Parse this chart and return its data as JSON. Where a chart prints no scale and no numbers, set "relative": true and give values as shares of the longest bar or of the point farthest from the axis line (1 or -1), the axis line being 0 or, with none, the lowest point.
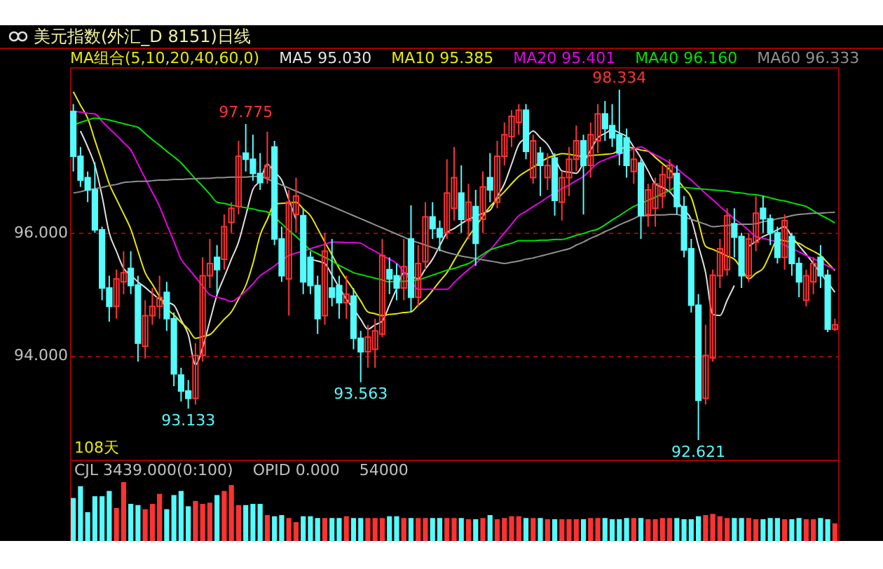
{
  "chart_data": [
    {
      "type": "candlestick",
      "title": "美元指数(外汇_D 8151)日线",
      "legend_title": "MA组合(5,10,20,40,60,0)",
      "legend": "top",
      "tick_labels": "y",
      "grid": "y",
      "categories": [
        null,
        null,
        null,
        null,
        null,
        null,
        null,
        null,
        null,
        null,
        null,
        null,
        null,
        null,
        null,
        null,
        null,
        null,
        null,
        null,
        null,
        null,
        null,
        null,
        null,
        null,
        null,
        null,
        null,
        null,
        null,
        null,
        null,
        null,
        null,
        null,
        null,
        null,
        null,
        null,
        null,
        null,
        null,
        null,
        null,
        null,
        null,
        null,
        null,
        null,
        null,
        null,
        null,
        null,
        null,
        null,
        null,
        null,
        null,
        null,
        null,
        null,
        null,
        null,
        null,
        null,
        null,
        null,
        null,
        null,
        null,
        null,
        null,
        null,
        null,
        null,
        null,
        null,
        null,
        null,
        null,
        null,
        null,
        null,
        null,
        null,
        null,
        null,
        null,
        null,
        null,
        null,
        null,
        null,
        null,
        null,
        null,
        null,
        null,
        null,
        null,
        null,
        null,
        null,
        null,
        null,
        null
      ],
      "ylim": [
        92.3,
        98.7
      ],
      "yticks": [
        {
          "value": 94,
          "label": "94.000"
        },
        {
          "value": 96,
          "label": "96.000"
        }
      ],
      "ohlc": [
        [
          97.98,
          98.1,
          97.0,
          97.25
        ],
        [
          97.25,
          97.4,
          96.75,
          96.86
        ],
        [
          96.9,
          97.0,
          96.5,
          96.7
        ],
        [
          96.7,
          97.15,
          96.0,
          96.05
        ],
        [
          96.05,
          96.1,
          94.9,
          95.1
        ],
        [
          95.1,
          95.3,
          94.55,
          94.8
        ],
        [
          94.8,
          95.4,
          94.6,
          95.25
        ],
        [
          95.2,
          95.7,
          95.0,
          95.35
        ],
        [
          95.42,
          95.7,
          95.0,
          95.14
        ],
        [
          95.15,
          95.3,
          93.9,
          94.2
        ],
        [
          94.15,
          94.9,
          93.95,
          94.65
        ],
        [
          94.65,
          95.1,
          94.5,
          94.8
        ],
        [
          94.8,
          95.3,
          94.6,
          94.95
        ],
        [
          95.03,
          95.2,
          94.4,
          94.6
        ],
        [
          94.6,
          94.7,
          93.5,
          93.7
        ],
        [
          93.68,
          93.8,
          93.25,
          93.42
        ],
        [
          93.42,
          93.6,
          93.133,
          93.3
        ],
        [
          93.3,
          94.2,
          93.2,
          94.0
        ],
        [
          94.0,
          95.6,
          93.9,
          95.3
        ],
        [
          95.3,
          95.9,
          95.1,
          95.5
        ],
        [
          95.6,
          95.8,
          95.0,
          95.4
        ],
        [
          95.57,
          96.3,
          95.4,
          96.1
        ],
        [
          96.17,
          96.5,
          96.0,
          96.4
        ],
        [
          96.43,
          97.5,
          96.3,
          97.25
        ],
        [
          97.3,
          97.775,
          97.0,
          97.2
        ],
        [
          97.2,
          97.6,
          96.85,
          96.97
        ],
        [
          96.97,
          97.3,
          96.7,
          96.82
        ],
        [
          96.9,
          97.65,
          96.8,
          97.1
        ],
        [
          97.4,
          97.5,
          95.8,
          95.9
        ],
        [
          95.9,
          96.1,
          95.2,
          95.3
        ],
        [
          95.25,
          96.7,
          94.65,
          96.5
        ],
        [
          96.3,
          96.9,
          96.0,
          96.6
        ],
        [
          96.28,
          96.4,
          95.0,
          95.2
        ],
        [
          95.6,
          95.7,
          95.0,
          95.14
        ],
        [
          95.14,
          95.3,
          94.35,
          94.6
        ],
        [
          94.65,
          96.0,
          94.5,
          95.7
        ],
        [
          95.1,
          95.9,
          94.8,
          94.95
        ],
        [
          95.14,
          95.3,
          94.6,
          94.86
        ],
        [
          94.86,
          95.3,
          94.6,
          95.0
        ],
        [
          94.97,
          95.1,
          94.1,
          94.28
        ],
        [
          94.28,
          94.4,
          93.563,
          94.06
        ],
        [
          94.06,
          94.5,
          93.8,
          94.3
        ],
        [
          94.1,
          94.6,
          93.8,
          94.4
        ],
        [
          94.35,
          95.9,
          94.3,
          95.63
        ],
        [
          95.4,
          95.6,
          95.0,
          95.25
        ],
        [
          95.3,
          95.5,
          94.9,
          95.1
        ],
        [
          95.1,
          95.9,
          94.9,
          95.45
        ],
        [
          95.9,
          96.45,
          94.7,
          94.95
        ],
        [
          94.95,
          95.8,
          94.8,
          95.5
        ],
        [
          95.53,
          96.5,
          95.4,
          96.26
        ],
        [
          96.26,
          96.5,
          95.9,
          96.07
        ],
        [
          96.07,
          96.2,
          95.7,
          95.93
        ],
        [
          96.0,
          97.2,
          95.9,
          96.65
        ],
        [
          96.4,
          97.4,
          96.2,
          96.9
        ],
        [
          96.65,
          97.1,
          96.0,
          96.22
        ],
        [
          96.2,
          96.8,
          95.9,
          96.5
        ],
        [
          96.43,
          96.7,
          95.46,
          95.83
        ],
        [
          96.22,
          97.0,
          96.0,
          96.75
        ],
        [
          96.9,
          97.3,
          96.5,
          96.7
        ],
        [
          96.5,
          97.5,
          96.4,
          97.25
        ],
        [
          97.25,
          97.8,
          97.1,
          97.6
        ],
        [
          97.57,
          98.0,
          97.4,
          97.9
        ],
        [
          97.8,
          98.1,
          97.6,
          98.0
        ],
        [
          98.0,
          98.1,
          97.2,
          97.33
        ],
        [
          96.9,
          97.6,
          96.8,
          97.5
        ],
        [
          97.3,
          97.4,
          96.6,
          97.1
        ],
        [
          96.9,
          97.3,
          96.7,
          97.1
        ],
        [
          97.22,
          97.3,
          96.28,
          96.53
        ],
        [
          96.5,
          97.0,
          96.2,
          96.9
        ],
        [
          96.9,
          97.4,
          96.6,
          97.2
        ],
        [
          97.2,
          97.75,
          97.0,
          97.5
        ],
        [
          97.5,
          97.6,
          96.3,
          97.1
        ],
        [
          97.1,
          97.8,
          96.9,
          97.6
        ],
        [
          97.5,
          98.1,
          97.3,
          97.94
        ],
        [
          97.94,
          98.15,
          97.5,
          97.7
        ],
        [
          97.75,
          98.1,
          97.4,
          97.55
        ],
        [
          97.6,
          98.334,
          97.1,
          97.3
        ],
        [
          97.55,
          97.7,
          96.9,
          97.1
        ],
        [
          97.0,
          97.4,
          96.8,
          97.2
        ],
        [
          97.14,
          97.2,
          95.9,
          96.28
        ],
        [
          96.3,
          96.8,
          96.1,
          96.7
        ],
        [
          96.4,
          96.9,
          96.1,
          96.8
        ],
        [
          96.6,
          97.1,
          96.4,
          96.95
        ],
        [
          96.9,
          97.2,
          96.7,
          97.1
        ],
        [
          96.97,
          97.1,
          96.3,
          96.43
        ],
        [
          96.43,
          96.6,
          95.6,
          95.72
        ],
        [
          95.74,
          95.9,
          94.7,
          94.82
        ],
        [
          94.82,
          95.0,
          92.621,
          93.27
        ],
        [
          93.3,
          94.5,
          93.2,
          94.0
        ],
        [
          93.96,
          95.4,
          93.9,
          95.31
        ],
        [
          95.3,
          95.9,
          95.1,
          95.74
        ],
        [
          95.4,
          96.4,
          95.3,
          96.28
        ],
        [
          96.15,
          96.4,
          95.6,
          95.93
        ],
        [
          95.94,
          96.0,
          95.1,
          95.3
        ],
        [
          95.3,
          96.0,
          95.2,
          95.9
        ],
        [
          95.85,
          96.6,
          95.7,
          96.32
        ],
        [
          96.4,
          96.6,
          96.0,
          96.23
        ],
        [
          96.23,
          96.3,
          95.8,
          96.0
        ],
        [
          96.0,
          96.1,
          95.5,
          95.6
        ],
        [
          95.6,
          96.3,
          95.4,
          96.2
        ],
        [
          95.94,
          96.0,
          95.3,
          95.5
        ],
        [
          95.5,
          95.6,
          94.95,
          95.2
        ],
        [
          94.9,
          95.4,
          94.8,
          95.3
        ],
        [
          95.2,
          95.6,
          95.0,
          95.5
        ],
        [
          95.6,
          95.8,
          95.1,
          95.3
        ],
        [
          95.31,
          95.4,
          94.38,
          94.43
        ],
        [
          94.43,
          94.6,
          94.4,
          94.5
        ]
      ],
      "colors": [
        "#54fcfc",
        "#54fcfc",
        "#54fcfc",
        "#54fcfc",
        "#54fcfc",
        "#54fcfc",
        "#ff3232",
        "#ff3232",
        "#54fcfc",
        "#54fcfc",
        "#ff3232",
        "#ff3232",
        "#ff3232",
        "#54fcfc",
        "#54fcfc",
        "#54fcfc",
        "#54fcfc",
        "#ff3232",
        "#ff3232",
        "#ff3232",
        "#54fcfc",
        "#ff3232",
        "#ff3232",
        "#ff3232",
        "#54fcfc",
        "#54fcfc",
        "#54fcfc",
        "#ff3232",
        "#54fcfc",
        "#54fcfc",
        "#ff3232",
        "#ff3232",
        "#54fcfc",
        "#54fcfc",
        "#54fcfc",
        "#ff3232",
        "#54fcfc",
        "#54fcfc",
        "#ff3232",
        "#54fcfc",
        "#54fcfc",
        "#ff3232",
        "#ff3232",
        "#ff3232",
        "#54fcfc",
        "#54fcfc",
        "#ff3232",
        "#54fcfc",
        "#ff3232",
        "#ff3232",
        "#54fcfc",
        "#54fcfc",
        "#ff3232",
        "#ff3232",
        "#54fcfc",
        "#ff3232",
        "#54fcfc",
        "#ff3232",
        "#54fcfc",
        "#ff3232",
        "#ff3232",
        "#ff3232",
        "#ff3232",
        "#54fcfc",
        "#ff3232",
        "#54fcfc",
        "#ff3232",
        "#54fcfc",
        "#ff3232",
        "#ff3232",
        "#ff3232",
        "#54fcfc",
        "#ff3232",
        "#ff3232",
        "#54fcfc",
        "#54fcfc",
        "#54fcfc",
        "#54fcfc",
        "#ff3232",
        "#54fcfc",
        "#ff3232",
        "#ff3232",
        "#ff3232",
        "#ff3232",
        "#54fcfc",
        "#54fcfc",
        "#54fcfc",
        "#54fcfc",
        "#ff3232",
        "#ff3232",
        "#ff3232",
        "#ff3232",
        "#54fcfc",
        "#54fcfc",
        "#ff3232",
        "#ff3232",
        "#54fcfc",
        "#54fcfc",
        "#54fcfc",
        "#ff3232",
        "#54fcfc",
        "#54fcfc",
        "#ff3232",
        "#ff3232",
        "#54fcfc",
        "#54fcfc",
        "#ff3232"
      ],
      "series": [
        {
          "type": "line",
          "name": "MA5 95.030",
          "color": "#e0e0e0",
          "values": [
            null,
            97.66,
            97.4,
            97.1,
            96.6,
            96.0,
            95.7,
            95.42,
            95.31,
            95.2,
            95.11,
            95.01,
            94.92,
            94.87,
            94.82,
            94.58,
            94.34,
            93.85,
            94.13,
            94.56,
            94.99,
            95.28,
            95.57,
            95.85,
            96.28,
            96.71,
            96.85,
            97.12,
            96.99,
            96.86,
            96.54,
            96.22,
            null,
            95.57,
            95.54,
            95.5,
            95.31,
            95.11,
            94.92,
            94.76,
            94.59,
            94.43,
            94.5,
            94.56,
            94.82,
            95.09,
            95.35,
            95.3,
            95.25,
            95.41,
            95.57,
            95.79,
            96.0,
            96.07,
            96.15,
            96.22,
            96.27,
            96.32,
            96.37,
            96.59,
            96.8,
            97.12,
            97.44,
            97.55,
            97.66,
            97.55,
            97.44,
            97.23,
            97.01,
            96.99,
            96.97,
            97.14,
            97.35,
            97.55,
            97.62,
            97.68,
            97.63,
            97.57,
            97.4,
            97.22,
            97.01,
            96.8,
            96.74,
            96.67,
            96.52,
            96.37,
            96.22,
            95.79,
            95.35,
            94.67,
            94.65,
            94.9,
            95.14,
            null,
            95.78,
            95.86,
            95.94,
            95.99,
            96.05,
            96.1,
            95.94,
            95.79,
            95.65,
            95.5,
            95.34,
            95.19,
            95.03
          ]
        },
        {
          "type": "line",
          "name": "MA10 95.385",
          "color": "#e8e800",
          "values": [
            98.3,
            98.08,
            97.87,
            97.51,
            97.16,
            96.8,
            96.55,
            96.31,
            96.06,
            95.7,
            95.35,
            95.16,
            94.96,
            94.77,
            94.66,
            94.54,
            94.43,
            94.28,
            94.31,
            94.34,
            94.46,
            94.59,
            94.71,
            94.92,
            95.14,
            95.5,
            95.96,
            96.22,
            96.47,
            96.48,
            96.49,
            96.5,
            96.39,
            96.28,
            96.07,
            95.85,
            95.64,
            95.42,
            95.24,
            95.07,
            94.89,
            94.71,
            94.68,
            94.65,
            94.67,
            94.68,
            94.7,
            94.71,
            94.82,
            94.92,
            95.06,
            95.21,
            95.35,
            95.55,
            95.75,
            95.94,
            96.1,
            96.27,
            96.43,
            96.55,
            96.67,
            96.8,
            96.92,
            97.0,
            97.07,
            97.15,
            97.22,
            97.26,
            97.29,
            97.28,
            97.26,
            97.25,
            97.26,
            97.27,
            97.28,
            97.29,
            97.35,
            97.4,
            97.38,
            97.35,
            97.33,
            97.23,
            97.13,
            97.03,
            96.88,
            96.73,
            96.58,
            96.18,
            95.78,
            95.73,
            95.68,
            95.62,
            95.57,
            95.41,
            95.25,
            95.34,
            95.42,
            95.66,
            95.89,
            95.87,
            95.85,
            95.83,
            95.76,
            95.7,
            95.63,
            95.51,
            95.385
          ]
        },
        {
          "type": "line",
          "name": "MA20 95.401",
          "color": "#e800e8",
          "values": [
            97.98,
            97.97,
            97.95,
            97.94,
            97.82,
            97.7,
            97.59,
            97.47,
            97.35,
            97.12,
            96.89,
            96.66,
            96.43,
            96.14,
            95.86,
            95.57,
            95.42,
            95.28,
            95.13,
            94.99,
            94.95,
            94.92,
            94.88,
            94.95,
            95.05,
            95.17,
            95.3,
            95.38,
            95.46,
            95.55,
            95.63,
            95.67,
            95.7,
            95.74,
            95.78,
            95.81,
            95.85,
            95.85,
            95.84,
            95.84,
            95.83,
            95.76,
            95.7,
            95.63,
            95.57,
            95.5,
            95.36,
            95.22,
            95.08,
            95.08,
            95.08,
            95.08,
            95.08,
            95.19,
            95.3,
            95.4,
            95.5,
            95.61,
            95.72,
            95.86,
            96.0,
            96.14,
            96.28,
            96.35,
            96.43,
            96.5,
            96.58,
            96.65,
            96.72,
            96.78,
            96.85,
            96.92,
            97.03,
            97.14,
            97.19,
            97.24,
            97.28,
            97.33,
            97.37,
            97.4,
            97.34,
            97.27,
            97.21,
            97.14,
            97.05,
            96.95,
            96.86,
            96.75,
            96.64,
            96.54,
            96.43,
            96.33,
            96.23,
            96.14,
            96.04,
            95.94,
            95.91,
            95.88,
            95.85,
            95.8,
            95.74,
            95.69,
            95.63,
            95.58,
            95.52,
            95.46,
            95.401
          ]
        },
        {
          "type": "line",
          "name": "MA40 96.160",
          "color": "#00e000",
          "values": [
            97.76,
            97.8,
            97.84,
            97.87,
            97.86,
            97.84,
            97.81,
            97.78,
            97.75,
            97.72,
            97.62,
            97.52,
            97.43,
            97.33,
            97.24,
            97.14,
            97.01,
            96.88,
            96.76,
            96.63,
            96.5,
            96.48,
            96.45,
            96.43,
            96.41,
            96.39,
            96.36,
            96.34,
            96.25,
            96.15,
            96.04,
            95.94,
            95.83,
            95.72,
            95.66,
            95.6,
            95.54,
            95.47,
            95.41,
            95.35,
            95.32,
            95.29,
            95.26,
            95.23,
            95.2,
            95.21,
            95.21,
            95.22,
            95.23,
            95.27,
            95.31,
            95.35,
            95.39,
            95.42,
            95.46,
            95.5,
            95.57,
            95.65,
            95.72,
            95.76,
            95.8,
            95.83,
            95.87,
            95.87,
            95.87,
            95.88,
            95.88,
            95.89,
            95.89,
            95.92,
            95.96,
            95.99,
            96.03,
            96.06,
            96.13,
            96.21,
            96.28,
            96.36,
            96.43,
            96.48,
            96.53,
            96.58,
            96.64,
            96.69,
            96.75,
            96.74,
            96.73,
            96.72,
            96.71,
            96.7,
            96.69,
            96.68,
            96.66,
            96.65,
            96.63,
            96.62,
            96.6,
            96.57,
            96.54,
            96.52,
            96.49,
            96.46,
            96.43,
            96.36,
            96.29,
            96.23,
            96.16
          ]
        },
        {
          "type": "line",
          "name": "MA60 96.333",
          "color": "#909090",
          "values": [
            96.65,
            96.67,
            96.7,
            96.72,
            96.74,
            96.77,
            96.79,
            96.82,
            96.83,
            96.84,
            96.84,
            96.85,
            96.86,
            96.86,
            96.87,
            96.87,
            96.88,
            96.88,
            96.89,
            96.89,
            96.9,
            96.9,
            96.91,
            96.91,
            96.91,
            96.92,
            96.92,
            96.88,
            96.83,
            96.78,
            96.73,
            96.68,
            96.63,
            96.58,
            96.53,
            96.48,
            96.43,
            96.38,
            96.33,
            96.28,
            96.23,
            96.18,
            96.13,
            96.08,
            96.03,
            95.98,
            95.93,
            95.88,
            95.84,
            95.8,
            95.76,
            95.72,
            95.68,
            95.65,
            95.62,
            95.6,
            95.58,
            95.56,
            95.54,
            95.52,
            95.5,
            95.52,
            95.54,
            95.57,
            95.59,
            95.62,
            95.65,
            95.68,
            95.71,
            95.74,
            95.8,
            95.85,
            95.91,
            95.96,
            96.02,
            96.07,
            96.13,
            96.18,
            96.23,
            96.28,
            96.28,
            96.29,
            96.29,
            96.3,
            96.3,
            96.26,
            96.22,
            96.18,
            96.14,
            96.1,
            96.11,
            96.12,
            96.13,
            96.14,
            96.14,
            96.15,
            96.18,
            96.2,
            96.23,
            96.25,
            96.28,
            96.3,
            96.31,
            96.32,
            96.32,
            96.33,
            96.333
          ]
        }
      ],
      "annotations": [
        {
          "text": "97.775",
          "y": 97.775
        },
        {
          "text": "93.133",
          "y": 93.133
        },
        {
          "text": "93.563",
          "y": 93.563
        },
        {
          "text": "98.334",
          "y": 98.334
        },
        {
          "text": "92.621",
          "y": 92.621
        },
        "108天"
      ]
    },
    {
      "type": "bar",
      "relative": true,
      "tick_labels": false,
      "categories": [
        null,
        null,
        null,
        null,
        null,
        null,
        null,
        null,
        null,
        null,
        null,
        null,
        null,
        null,
        null,
        null,
        null,
        null,
        null,
        null,
        null,
        null,
        null,
        null,
        null,
        null,
        null,
        null,
        null,
        null,
        null,
        null,
        null,
        null,
        null,
        null,
        null,
        null,
        null,
        null,
        null,
        null,
        null,
        null,
        null,
        null,
        null,
        null,
        null,
        null,
        null,
        null,
        null,
        null,
        null,
        null,
        null,
        null,
        null,
        null,
        null,
        null,
        null,
        null,
        null,
        null,
        null,
        null,
        null,
        null,
        null,
        null,
        null,
        null,
        null,
        null,
        null,
        null,
        null,
        null,
        null,
        null,
        null,
        null,
        null,
        null,
        null,
        null,
        null,
        null,
        null,
        null,
        null,
        null,
        null,
        null,
        null,
        null,
        null,
        null,
        null,
        null,
        null,
        null,
        null,
        null,
        null
      ],
      "values": [
        0.73,
        0.93,
        0.49,
        0.76,
        0.76,
        0.85,
        0.56,
        1.0,
        0.63,
        0.61,
        0.54,
        0.63,
        0.8,
        0.54,
        0.78,
        0.85,
        0.59,
        0.68,
        0.63,
        0.65,
        0.78,
        0.85,
        0.95,
        0.61,
        0.61,
        0.63,
        0.63,
        0.44,
        0.42,
        0.44,
        0.39,
        0.32,
        0.42,
        0.42,
        0.39,
        0.39,
        0.39,
        0.39,
        0.42,
        0.39,
        0.39,
        0.39,
        0.39,
        0.39,
        0.42,
        0.42,
        0.39,
        0.39,
        0.39,
        0.39,
        0.39,
        0.39,
        0.39,
        0.39,
        0.39,
        0.37,
        0.37,
        0.39,
        0.44,
        0.37,
        0.39,
        0.42,
        0.42,
        0.39,
        0.39,
        0.39,
        0.37,
        0.37,
        0.37,
        0.37,
        0.37,
        0.37,
        0.39,
        0.39,
        0.39,
        0.37,
        0.37,
        0.39,
        0.39,
        0.39,
        0.37,
        0.37,
        0.39,
        0.39,
        0.39,
        0.37,
        0.37,
        0.42,
        0.44,
        0.46,
        0.42,
        0.39,
        0.39,
        0.39,
        0.39,
        0.37,
        0.37,
        0.39,
        0.39,
        0.37,
        0.37,
        0.39,
        0.37,
        0.37,
        0.39,
        0.37,
        0.3
      ],
      "colors": [
        "#54fcfc",
        "#54fcfc",
        "#54fcfc",
        "#54fcfc",
        "#54fcfc",
        "#54fcfc",
        "#ff3232",
        "#ff3232",
        "#54fcfc",
        "#54fcfc",
        "#ff3232",
        "#ff3232",
        "#ff3232",
        "#54fcfc",
        "#54fcfc",
        "#54fcfc",
        "#54fcfc",
        "#ff3232",
        "#ff3232",
        "#ff3232",
        "#54fcfc",
        "#ff3232",
        "#ff3232",
        "#ff3232",
        "#54fcfc",
        "#54fcfc",
        "#54fcfc",
        "#ff3232",
        "#54fcfc",
        "#54fcfc",
        "#ff3232",
        "#ff3232",
        "#54fcfc",
        "#54fcfc",
        "#54fcfc",
        "#ff3232",
        "#54fcfc",
        "#54fcfc",
        "#ff3232",
        "#54fcfc",
        "#54fcfc",
        "#ff3232",
        "#ff3232",
        "#ff3232",
        "#54fcfc",
        "#54fcfc",
        "#ff3232",
        "#54fcfc",
        "#ff3232",
        "#ff3232",
        "#54fcfc",
        "#54fcfc",
        "#ff3232",
        "#ff3232",
        "#54fcfc",
        "#ff3232",
        "#54fcfc",
        "#ff3232",
        "#54fcfc",
        "#ff3232",
        "#ff3232",
        "#ff3232",
        "#ff3232",
        "#54fcfc",
        "#ff3232",
        "#54fcfc",
        "#ff3232",
        "#54fcfc",
        "#ff3232",
        "#ff3232",
        "#ff3232",
        "#54fcfc",
        "#ff3232",
        "#ff3232",
        "#54fcfc",
        "#54fcfc",
        "#54fcfc",
        "#54fcfc",
        "#ff3232",
        "#54fcfc",
        "#ff3232",
        "#ff3232",
        "#ff3232",
        "#ff3232",
        "#54fcfc",
        "#54fcfc",
        "#54fcfc",
        "#54fcfc",
        "#ff3232",
        "#ff3232",
        "#ff3232",
        "#ff3232",
        "#54fcfc",
        "#54fcfc",
        "#ff3232",
        "#ff3232",
        "#54fcfc",
        "#54fcfc",
        "#54fcfc",
        "#ff3232",
        "#54fcfc",
        "#54fcfc",
        "#ff3232",
        "#ff3232",
        "#54fcfc",
        "#54fcfc",
        "#ff3232"
      ],
      "annotations": [
        "CJL 3439.000(0:100)",
        "OPID 0.000",
        "54000"
      ]
    }
  ]
}
